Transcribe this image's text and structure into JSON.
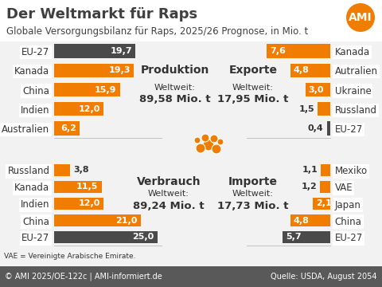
{
  "header": {
    "title": "Der Weltmarkt für Raps",
    "subtitle": "Globale Versorgungsbilanz für Raps, 2025/26 Prognose, in Mio. t",
    "logo": "AMI"
  },
  "chart_data": [
    {
      "type": "bar",
      "orientation": "horizontal",
      "title": "Produktion",
      "annotations": [
        "Weltweit:",
        "89,58 Mio. t"
      ],
      "categories": [
        "EU-27",
        "Kanada",
        "China",
        "Indien",
        "Australien"
      ],
      "values": [
        19.7,
        19.3,
        15.9,
        12.0,
        6.2
      ],
      "value_labels": [
        "19,7",
        "19,3",
        "15,9",
        "12,0",
        "6,2"
      ],
      "colors": [
        "#4a4a4a",
        "#f07d00",
        "#f07d00",
        "#f07d00",
        "#f07d00"
      ],
      "xlim": [
        0,
        26
      ],
      "data_labels": true,
      "tick_labels": "y"
    },
    {
      "type": "bar",
      "orientation": "horizontal",
      "title": "Exporte",
      "annotations": [
        "Weltweit:",
        "17,95 Mio. t"
      ],
      "categories": [
        "Kanada",
        "Autralien",
        "Ukraine",
        "Russland",
        "EU-27"
      ],
      "values": [
        7.6,
        4.8,
        3.0,
        1.5,
        0.4
      ],
      "value_labels": [
        "7,6",
        "4,8",
        "3,0",
        "1,5",
        "0,4"
      ],
      "colors": [
        "#f07d00",
        "#f07d00",
        "#f07d00",
        "#f07d00",
        "#4a4a4a"
      ],
      "xlim": [
        0,
        10
      ],
      "data_labels": true,
      "tick_labels": "y"
    },
    {
      "type": "bar",
      "orientation": "horizontal",
      "title": "Verbrauch",
      "annotations": [
        "Weltweit:",
        "89,24 Mio. t"
      ],
      "categories": [
        "Russland",
        "Kanada",
        "Indien",
        "China",
        "EU-27"
      ],
      "values": [
        3.8,
        11.5,
        12.0,
        21.0,
        25.0
      ],
      "value_labels": [
        "3,8",
        "11,5",
        "12,0",
        "21,0",
        "25,0"
      ],
      "colors": [
        "#f07d00",
        "#f07d00",
        "#f07d00",
        "#f07d00",
        "#4a4a4a"
      ],
      "xlim": [
        0,
        26
      ],
      "data_labels": true,
      "tick_labels": "y"
    },
    {
      "type": "bar",
      "orientation": "horizontal",
      "title": "Importe",
      "annotations": [
        "Weltweit:",
        "17,73 Mio. t"
      ],
      "categories": [
        "Mexiko",
        "VAE",
        "Japan",
        "China",
        "EU-27"
      ],
      "values": [
        1.1,
        1.2,
        2.1,
        4.8,
        5.7
      ],
      "value_labels": [
        "1,1",
        "1,2",
        "2,1",
        "4,8",
        "5,7"
      ],
      "colors": [
        "#f07d00",
        "#f07d00",
        "#f07d00",
        "#f07d00",
        "#4a4a4a"
      ],
      "xlim": [
        0,
        10
      ],
      "data_labels": true,
      "tick_labels": "y"
    }
  ],
  "footnote": "VAE = Vereinigte Arabische Emirate.",
  "footer": {
    "copyright": "© AMI 2025/OE-122c | AMI-informiert.de",
    "source": "Quelle: USDA, August 2054"
  }
}
